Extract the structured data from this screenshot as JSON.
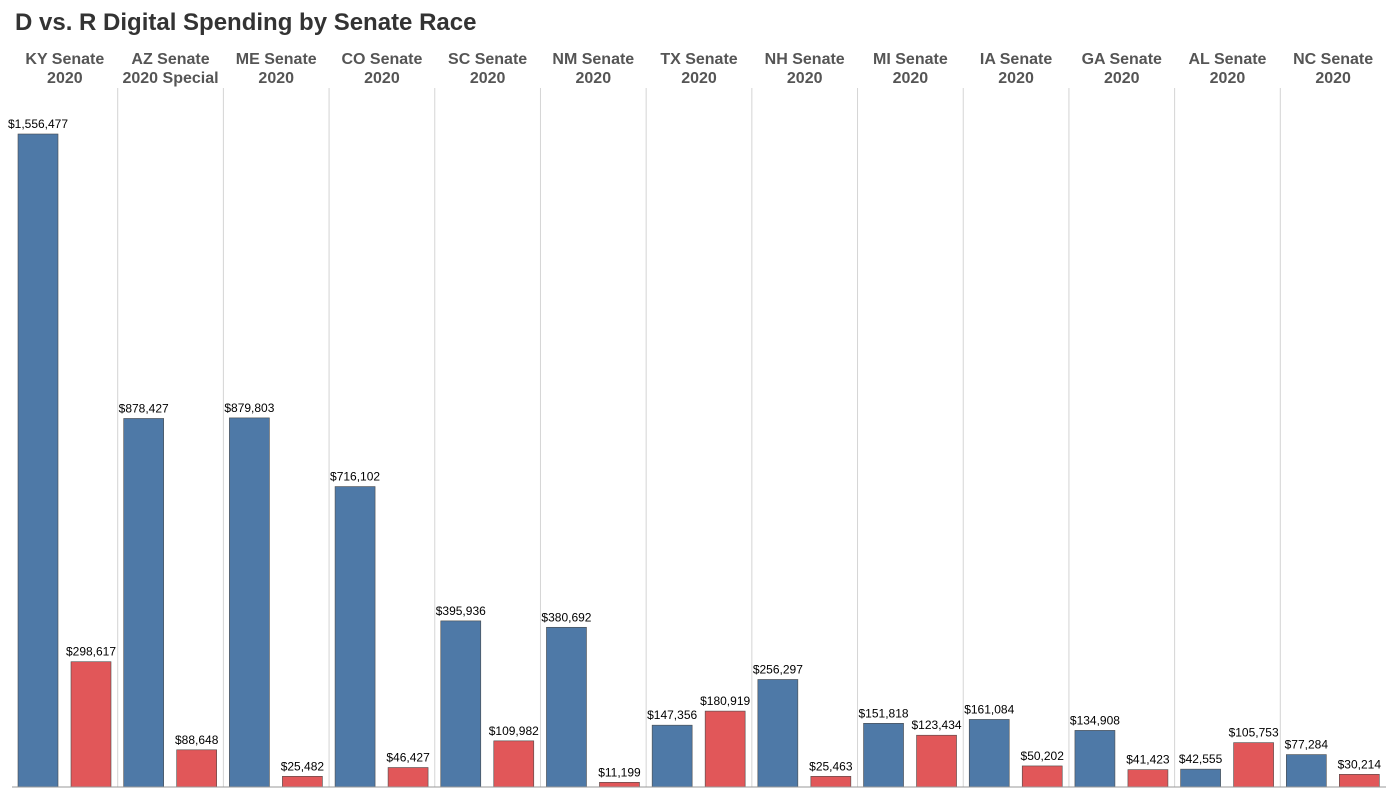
{
  "chart_data": {
    "type": "bar",
    "title": "D vs. R Digital Spending by Senate Race",
    "categories": [
      [
        "KY Senate",
        "2020"
      ],
      [
        "AZ Senate",
        "2020 Special"
      ],
      [
        "ME Senate",
        "2020"
      ],
      [
        "CO Senate",
        "2020"
      ],
      [
        "SC Senate",
        "2020"
      ],
      [
        "NM Senate",
        "2020"
      ],
      [
        "TX Senate",
        "2020"
      ],
      [
        "NH Senate",
        "2020"
      ],
      [
        "MI Senate",
        "2020"
      ],
      [
        "IA Senate",
        "2020"
      ],
      [
        "GA Senate",
        "2020"
      ],
      [
        "AL Senate",
        "2020"
      ],
      [
        "NC Senate",
        "2020"
      ]
    ],
    "series": [
      {
        "color": "#4e79a7",
        "values": [
          1556477,
          878427,
          879803,
          716102,
          395936,
          380692,
          147356,
          256297,
          151818,
          161084,
          134908,
          42555,
          77284
        ],
        "labels": [
          "$1,556,477",
          "$878,427",
          "$879,803",
          "$716,102",
          "$395,936",
          "$380,692",
          "$147,356",
          "$256,297",
          "$151,818",
          "$161,084",
          "$134,908",
          "$42,555",
          "$77,284"
        ]
      },
      {
        "color": "#e15759",
        "values": [
          298617,
          88648,
          25482,
          46427,
          109982,
          11199,
          180919,
          25463,
          123434,
          50202,
          41423,
          105753,
          30214
        ],
        "labels": [
          "$298,617",
          "$88,648",
          "$25,482",
          "$46,427",
          "$109,982",
          "$11,199",
          "$180,919",
          "$25,463",
          "$123,434",
          "$50,202",
          "$41,423",
          "$105,753",
          "$30,214"
        ]
      }
    ],
    "ylim": [
      0,
      1556477
    ],
    "grid": false,
    "legend": "none"
  }
}
